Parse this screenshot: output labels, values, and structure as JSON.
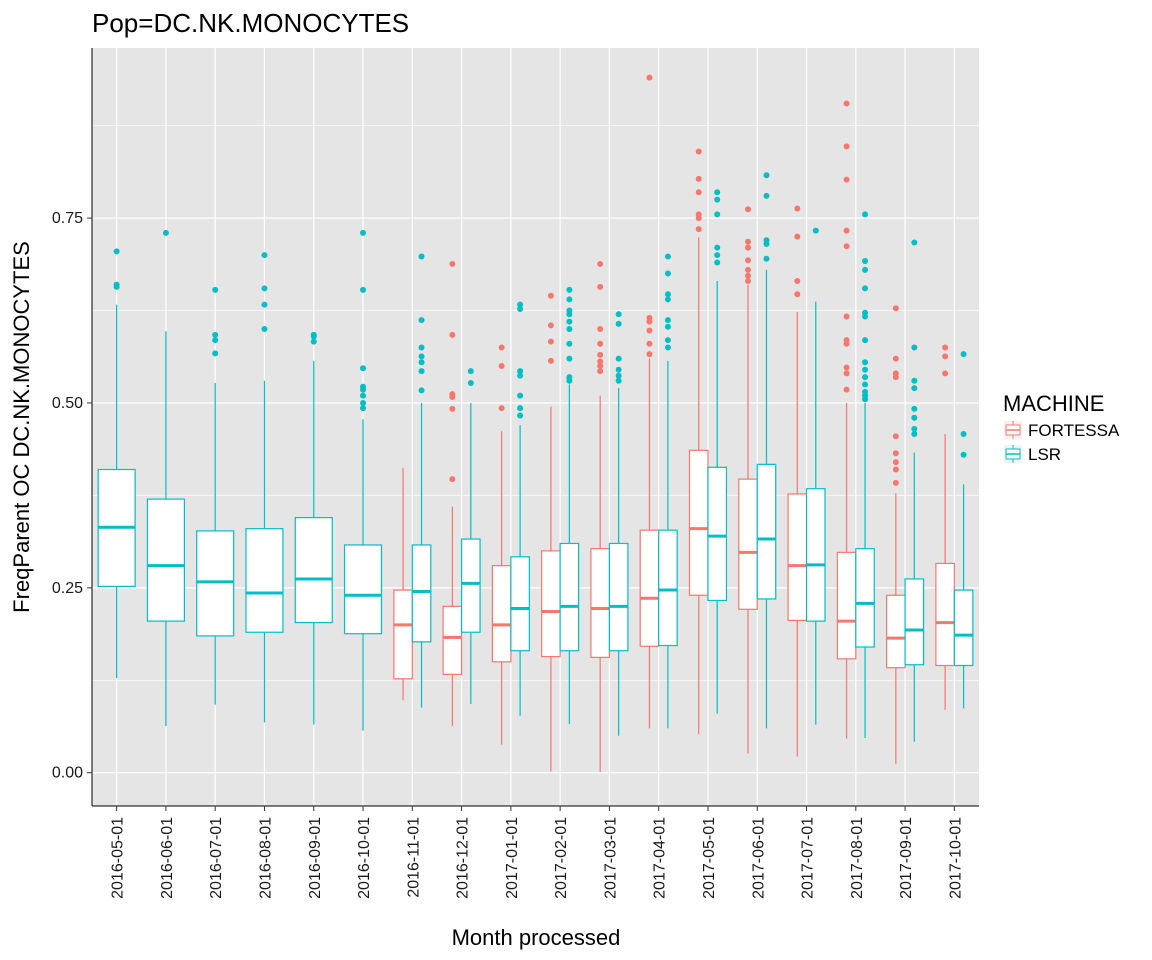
{
  "chart_data": {
    "type": "box",
    "title": "Pop=DC.NK.MONOCYTES",
    "xlabel": "Month processed",
    "ylabel": "FreqParent OC  DC.NK.MONOCYTES",
    "ylim": [
      -0.045,
      0.98
    ],
    "yticks": [
      0.0,
      0.25,
      0.5,
      0.75
    ],
    "ytick_labels": [
      "0.00",
      "0.25",
      "0.50",
      "0.75"
    ],
    "grid": true,
    "legend": {
      "title": "MACHINE",
      "position": "right"
    },
    "categories": [
      "2016-05-01",
      "2016-06-01",
      "2016-07-01",
      "2016-08-01",
      "2016-09-01",
      "2016-10-01",
      "2016-11-01",
      "2016-12-01",
      "2017-01-01",
      "2017-02-01",
      "2017-03-01",
      "2017-04-01",
      "2017-05-01",
      "2017-06-01",
      "2017-07-01",
      "2017-08-01",
      "2017-09-01",
      "2017-10-01"
    ],
    "series": [
      {
        "name": "FORTESSA",
        "color": "#F8766D",
        "boxes": [
          null,
          null,
          null,
          null,
          null,
          null,
          {
            "min": 0.098,
            "q1": 0.127,
            "median": 0.2,
            "q3": 0.247,
            "max": 0.412,
            "outliers": []
          },
          {
            "min": 0.063,
            "q1": 0.133,
            "median": 0.183,
            "q3": 0.225,
            "max": 0.36,
            "outliers": [
              0.397,
              0.492,
              0.508,
              0.512,
              0.592,
              0.688
            ]
          },
          {
            "min": 0.038,
            "q1": 0.15,
            "median": 0.2,
            "q3": 0.28,
            "max": 0.462,
            "outliers": [
              0.493,
              0.55,
              0.575
            ]
          },
          {
            "min": 0.002,
            "q1": 0.157,
            "median": 0.218,
            "q3": 0.3,
            "max": 0.495,
            "outliers": [
              0.557,
              0.583,
              0.605,
              0.645
            ]
          },
          {
            "min": 0.001,
            "q1": 0.156,
            "median": 0.222,
            "q3": 0.303,
            "max": 0.51,
            "outliers": [
              0.543,
              0.55,
              0.556,
              0.565,
              0.58,
              0.6,
              0.657,
              0.688
            ]
          },
          {
            "min": 0.06,
            "q1": 0.171,
            "median": 0.236,
            "q3": 0.328,
            "max": 0.56,
            "outliers": [
              0.566,
              0.58,
              0.598,
              0.61,
              0.615,
              0.94
            ]
          },
          {
            "min": 0.052,
            "q1": 0.24,
            "median": 0.33,
            "q3": 0.436,
            "max": 0.724,
            "outliers": [
              0.735,
              0.75,
              0.755,
              0.785,
              0.803,
              0.84
            ]
          },
          {
            "min": 0.026,
            "q1": 0.221,
            "median": 0.298,
            "q3": 0.397,
            "max": 0.66,
            "outliers": [
              0.665,
              0.672,
              0.68,
              0.693,
              0.71,
              0.718,
              0.762
            ]
          },
          {
            "min": 0.022,
            "q1": 0.206,
            "median": 0.28,
            "q3": 0.377,
            "max": 0.623,
            "outliers": [
              0.647,
              0.665,
              0.725,
              0.763
            ]
          },
          {
            "min": 0.046,
            "q1": 0.154,
            "median": 0.205,
            "q3": 0.298,
            "max": 0.5,
            "outliers": [
              0.518,
              0.54,
              0.548,
              0.58,
              0.585,
              0.617,
              0.712,
              0.733,
              0.802,
              0.847,
              0.905
            ]
          },
          {
            "min": 0.012,
            "q1": 0.142,
            "median": 0.182,
            "q3": 0.24,
            "max": 0.378,
            "outliers": [
              0.392,
              0.41,
              0.42,
              0.432,
              0.455,
              0.535,
              0.54,
              0.56,
              0.628
            ]
          },
          {
            "min": 0.085,
            "q1": 0.145,
            "median": 0.203,
            "q3": 0.283,
            "max": 0.458,
            "outliers": [
              0.54,
              0.563,
              0.575
            ]
          }
        ]
      },
      {
        "name": "LSR",
        "color": "#00BFC4",
        "boxes": [
          {
            "min": 0.128,
            "q1": 0.252,
            "median": 0.332,
            "q3": 0.41,
            "max": 0.633,
            "outliers": [
              0.657,
              0.66,
              0.705
            ]
          },
          {
            "min": 0.063,
            "q1": 0.205,
            "median": 0.28,
            "q3": 0.37,
            "max": 0.597,
            "outliers": [
              0.73
            ]
          },
          {
            "min": 0.092,
            "q1": 0.185,
            "median": 0.258,
            "q3": 0.327,
            "max": 0.527,
            "outliers": [
              0.567,
              0.585,
              0.592,
              0.653
            ]
          },
          {
            "min": 0.068,
            "q1": 0.19,
            "median": 0.243,
            "q3": 0.33,
            "max": 0.53,
            "outliers": [
              0.6,
              0.633,
              0.655,
              0.7
            ]
          },
          {
            "min": 0.065,
            "q1": 0.203,
            "median": 0.262,
            "q3": 0.345,
            "max": 0.557,
            "outliers": [
              0.583,
              0.59,
              0.592
            ]
          },
          {
            "min": 0.057,
            "q1": 0.188,
            "median": 0.24,
            "q3": 0.308,
            "max": 0.478,
            "outliers": [
              0.493,
              0.5,
              0.51,
              0.518,
              0.522,
              0.547,
              0.653,
              0.73
            ]
          },
          {
            "min": 0.088,
            "q1": 0.177,
            "median": 0.245,
            "q3": 0.308,
            "max": 0.5,
            "outliers": [
              0.517,
              0.543,
              0.555,
              0.563,
              0.575,
              0.612,
              0.698
            ]
          },
          {
            "min": 0.093,
            "q1": 0.19,
            "median": 0.256,
            "q3": 0.316,
            "max": 0.5,
            "outliers": [
              0.527,
              0.543
            ]
          },
          {
            "min": 0.077,
            "q1": 0.165,
            "median": 0.222,
            "q3": 0.292,
            "max": 0.47,
            "outliers": [
              0.483,
              0.493,
              0.51,
              0.537,
              0.543,
              0.627,
              0.633
            ]
          },
          {
            "min": 0.066,
            "q1": 0.165,
            "median": 0.225,
            "q3": 0.31,
            "max": 0.525,
            "outliers": [
              0.53,
              0.535,
              0.56,
              0.58,
              0.6,
              0.61,
              0.62,
              0.625,
              0.64,
              0.653
            ]
          },
          {
            "min": 0.05,
            "q1": 0.165,
            "median": 0.225,
            "q3": 0.31,
            "max": 0.52,
            "outliers": [
              0.53,
              0.537,
              0.545,
              0.56,
              0.607,
              0.62
            ]
          },
          {
            "min": 0.06,
            "q1": 0.172,
            "median": 0.247,
            "q3": 0.328,
            "max": 0.557,
            "outliers": [
              0.575,
              0.585,
              0.603,
              0.612,
              0.64,
              0.647,
              0.675,
              0.698
            ]
          },
          {
            "min": 0.08,
            "q1": 0.233,
            "median": 0.32,
            "q3": 0.413,
            "max": 0.665,
            "outliers": [
              0.69,
              0.7,
              0.71,
              0.755,
              0.775,
              0.785
            ]
          },
          {
            "min": 0.06,
            "q1": 0.235,
            "median": 0.316,
            "q3": 0.417,
            "max": 0.68,
            "outliers": [
              0.695,
              0.715,
              0.72,
              0.78,
              0.808
            ]
          },
          {
            "min": 0.065,
            "q1": 0.205,
            "median": 0.281,
            "q3": 0.384,
            "max": 0.637,
            "outliers": [
              0.733
            ]
          },
          {
            "min": 0.047,
            "q1": 0.17,
            "median": 0.229,
            "q3": 0.303,
            "max": 0.5,
            "outliers": [
              0.505,
              0.51,
              0.515,
              0.525,
              0.535,
              0.545,
              0.555,
              0.585,
              0.617,
              0.622,
              0.655,
              0.68,
              0.692,
              0.755
            ]
          },
          {
            "min": 0.042,
            "q1": 0.146,
            "median": 0.193,
            "q3": 0.262,
            "max": 0.433,
            "outliers": [
              0.458,
              0.465,
              0.48,
              0.492,
              0.52,
              0.53,
              0.575,
              0.717
            ]
          },
          {
            "min": 0.087,
            "q1": 0.145,
            "median": 0.186,
            "q3": 0.247,
            "max": 0.39,
            "outliers": [
              0.43,
              0.458,
              0.566
            ]
          }
        ]
      }
    ]
  }
}
